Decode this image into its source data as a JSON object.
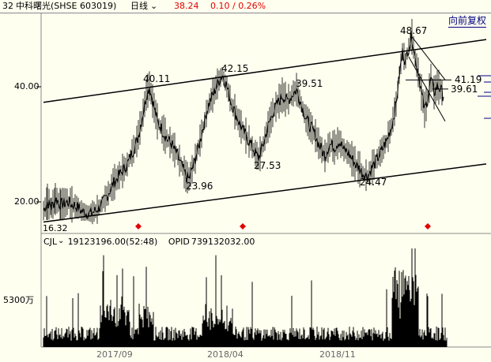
{
  "header": {
    "index": "32",
    "stock_name": "中科曙光(SHSE 603019)",
    "period": "日线",
    "price": "38.24",
    "change": "0.10 / 0.26%"
  },
  "toolbar": {
    "adjust_label": "向前复权"
  },
  "price_axis": {
    "ticks": [
      "40.00",
      "20.00"
    ]
  },
  "volume_axis": {
    "ticks": [
      "5300万"
    ]
  },
  "time_axis": {
    "ticks": [
      "2017/09",
      "2018/04",
      "2018/11"
    ]
  },
  "annotations": {
    "peak_1": "40.11",
    "peak_2": "42.15",
    "peak_3": "39.51",
    "peak_4": "48.67",
    "low_1": "23.96",
    "low_2": "27.53",
    "low_3": "24.47",
    "level_1": "41.19",
    "level_2": "39.61",
    "corner_label": "16.32"
  },
  "volume_panel": {
    "indicator": "CJL",
    "value": "19123196.00(52:48)",
    "opid_label": "OPID",
    "opid_value": "739132032.00"
  },
  "colors": {
    "header_red": "#e00000",
    "signal": "#e00000",
    "link": "#000080"
  },
  "chart_data": {
    "type": "line",
    "title": "",
    "y_range": [
      16.32,
      48.67
    ],
    "x_ticks": [
      "2017/09",
      "2018/04",
      "2018/11"
    ],
    "y_ticks": [
      20.0,
      40.0
    ],
    "points": [
      {
        "x": 0,
        "y": 18.5
      },
      {
        "x": 5,
        "y": 20.0
      },
      {
        "x": 10,
        "y": 19.0
      },
      {
        "x": 15,
        "y": 20.5
      },
      {
        "x": 22,
        "y": 19.5
      },
      {
        "x": 30,
        "y": 20.0
      },
      {
        "x": 40,
        "y": 19.3
      },
      {
        "x": 50,
        "y": 18.3
      },
      {
        "x": 58,
        "y": 18.0
      },
      {
        "x": 66,
        "y": 18.4
      },
      {
        "x": 74,
        "y": 19.6
      },
      {
        "x": 82,
        "y": 21.5
      },
      {
        "x": 90,
        "y": 23.5
      },
      {
        "x": 98,
        "y": 25.0
      },
      {
        "x": 106,
        "y": 26.5
      },
      {
        "x": 112,
        "y": 28.5
      },
      {
        "x": 118,
        "y": 30.5
      },
      {
        "x": 124,
        "y": 34.0
      },
      {
        "x": 130,
        "y": 38.5
      },
      {
        "x": 134,
        "y": 40.11
      },
      {
        "x": 138,
        "y": 37.5
      },
      {
        "x": 144,
        "y": 34.0
      },
      {
        "x": 150,
        "y": 32.5
      },
      {
        "x": 156,
        "y": 31.0
      },
      {
        "x": 162,
        "y": 30.0
      },
      {
        "x": 168,
        "y": 28.5
      },
      {
        "x": 174,
        "y": 26.5
      },
      {
        "x": 180,
        "y": 24.5
      },
      {
        "x": 184,
        "y": 23.96
      },
      {
        "x": 190,
        "y": 26.5
      },
      {
        "x": 196,
        "y": 29.5
      },
      {
        "x": 202,
        "y": 33.0
      },
      {
        "x": 208,
        "y": 36.5
      },
      {
        "x": 214,
        "y": 38.5
      },
      {
        "x": 220,
        "y": 40.5
      },
      {
        "x": 226,
        "y": 42.15
      },
      {
        "x": 232,
        "y": 40.0
      },
      {
        "x": 238,
        "y": 37.0
      },
      {
        "x": 244,
        "y": 35.0
      },
      {
        "x": 250,
        "y": 33.0
      },
      {
        "x": 256,
        "y": 31.5
      },
      {
        "x": 262,
        "y": 30.0
      },
      {
        "x": 268,
        "y": 28.5
      },
      {
        "x": 272,
        "y": 27.53
      },
      {
        "x": 278,
        "y": 30.0
      },
      {
        "x": 284,
        "y": 33.0
      },
      {
        "x": 290,
        "y": 35.5
      },
      {
        "x": 296,
        "y": 37.0
      },
      {
        "x": 302,
        "y": 38.5
      },
      {
        "x": 308,
        "y": 37.5
      },
      {
        "x": 314,
        "y": 38.5
      },
      {
        "x": 320,
        "y": 39.51
      },
      {
        "x": 326,
        "y": 37.0
      },
      {
        "x": 332,
        "y": 34.5
      },
      {
        "x": 338,
        "y": 33.0
      },
      {
        "x": 344,
        "y": 31.5
      },
      {
        "x": 350,
        "y": 29.5
      },
      {
        "x": 356,
        "y": 28.0
      },
      {
        "x": 362,
        "y": 30.0
      },
      {
        "x": 368,
        "y": 29.5
      },
      {
        "x": 374,
        "y": 30.5
      },
      {
        "x": 380,
        "y": 29.0
      },
      {
        "x": 386,
        "y": 28.5
      },
      {
        "x": 392,
        "y": 27.0
      },
      {
        "x": 398,
        "y": 26.0
      },
      {
        "x": 404,
        "y": 25.0
      },
      {
        "x": 410,
        "y": 24.47
      },
      {
        "x": 416,
        "y": 26.0
      },
      {
        "x": 422,
        "y": 27.5
      },
      {
        "x": 428,
        "y": 29.0
      },
      {
        "x": 434,
        "y": 30.5
      },
      {
        "x": 440,
        "y": 33.0
      },
      {
        "x": 446,
        "y": 37.0
      },
      {
        "x": 450,
        "y": 42.0
      },
      {
        "x": 454,
        "y": 46.0
      },
      {
        "x": 458,
        "y": 44.5
      },
      {
        "x": 462,
        "y": 47.0
      },
      {
        "x": 466,
        "y": 48.67
      },
      {
        "x": 470,
        "y": 45.0
      },
      {
        "x": 474,
        "y": 42.5
      },
      {
        "x": 478,
        "y": 39.0
      },
      {
        "x": 482,
        "y": 36.0
      },
      {
        "x": 486,
        "y": 38.0
      },
      {
        "x": 490,
        "y": 41.5
      },
      {
        "x": 494,
        "y": 39.0
      },
      {
        "x": 498,
        "y": 40.2
      },
      {
        "x": 502,
        "y": 39.61
      },
      {
        "x": 506,
        "y": 38.24
      }
    ],
    "channel_upper": [
      {
        "x": 0,
        "y": 37.3
      },
      {
        "x": 560,
        "y": 48.2
      }
    ],
    "channel_lower": [
      {
        "x": 0,
        "y": 16.5
      },
      {
        "x": 560,
        "y": 26.6
      }
    ],
    "signals_x": [
      120,
      252,
      486
    ]
  }
}
